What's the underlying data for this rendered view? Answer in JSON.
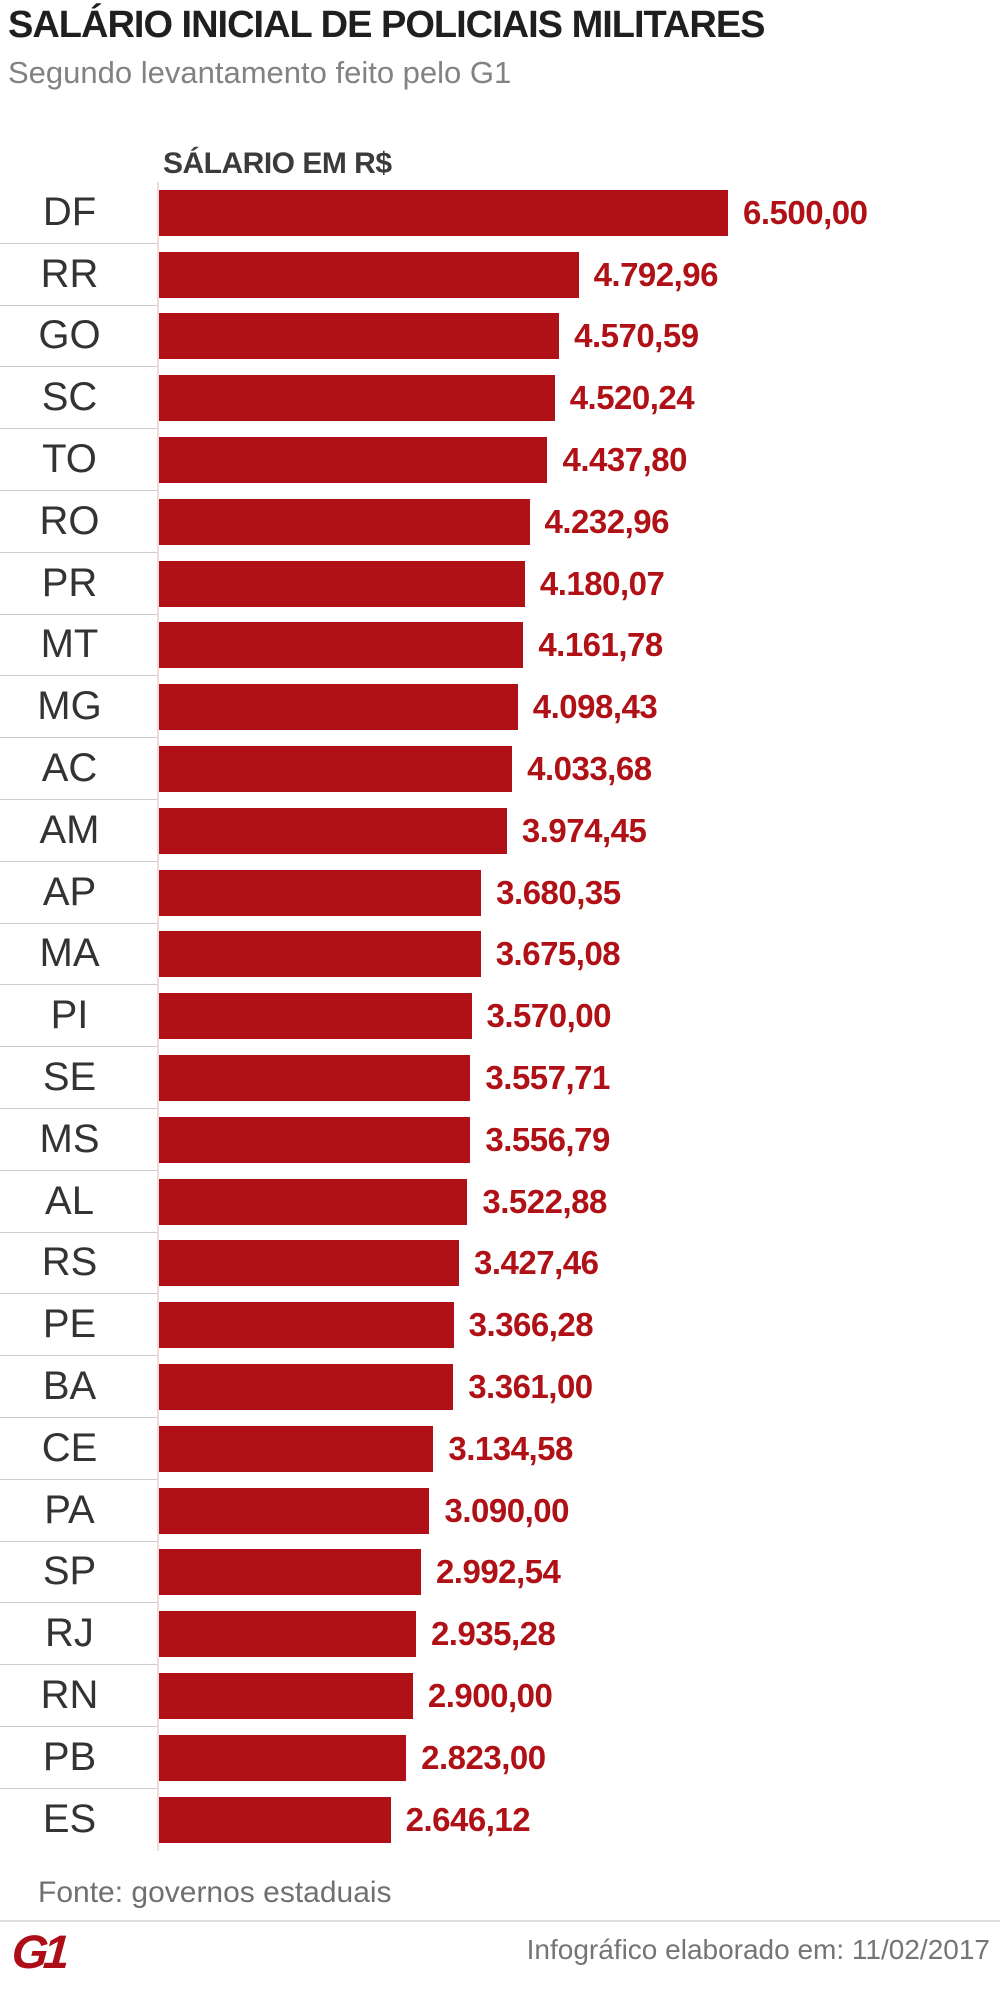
{
  "title": "SALÁRIO INICIAL DE POLICIAIS MILITARES",
  "subtitle": "Segundo levantamento feito pelo G1",
  "chart_data": {
    "type": "bar",
    "orientation": "horizontal",
    "title": "SALÁRIO INICIAL DE POLICIAIS MILITARES",
    "axis_header": "SÁLARIO EM R$",
    "categories": [
      "DF",
      "RR",
      "GO",
      "SC",
      "TO",
      "RO",
      "PR",
      "MT",
      "MG",
      "AC",
      "AM",
      "AP",
      "MA",
      "PI",
      "SE",
      "MS",
      "AL",
      "RS",
      "PE",
      "BA",
      "CE",
      "PA",
      "SP",
      "RJ",
      "RN",
      "PB",
      "ES"
    ],
    "values": [
      6500.0,
      4792.96,
      4570.59,
      4520.24,
      4437.8,
      4232.96,
      4180.07,
      4161.78,
      4098.43,
      4033.68,
      3974.45,
      3680.35,
      3675.08,
      3570.0,
      3557.71,
      3556.79,
      3522.88,
      3427.46,
      3366.28,
      3361.0,
      3134.58,
      3090.0,
      2992.54,
      2935.28,
      2900.0,
      2823.0,
      2646.12
    ],
    "value_labels": [
      "6.500,00",
      "4.792,96",
      "4.570,59",
      "4.520,24",
      "4.437,80",
      "4.232,96",
      "4.180,07",
      "4.161,78",
      "4.098,43",
      "4.033,68",
      "3.974,45",
      "3.680,35",
      "3.675,08",
      "3.570,00",
      "3.557,71",
      "3.556,79",
      "3.522,88",
      "3.427,46",
      "3.366,28",
      "3.361,00",
      "3.134,58",
      "3.090,00",
      "2.992,54",
      "2.935,28",
      "2.900,00",
      "2.823,00",
      "2.646,12"
    ],
    "xlim": [
      0,
      6500
    ],
    "grid": false,
    "legend": false,
    "bar_color": "#b01116",
    "value_label_color": "#b01116",
    "value_label_position": "end-of-bar"
  },
  "footer": {
    "source": "Fonte: governos estaduais",
    "logo": "G1",
    "date_note": "Infográfico elaborado em: 11/02/2017"
  }
}
